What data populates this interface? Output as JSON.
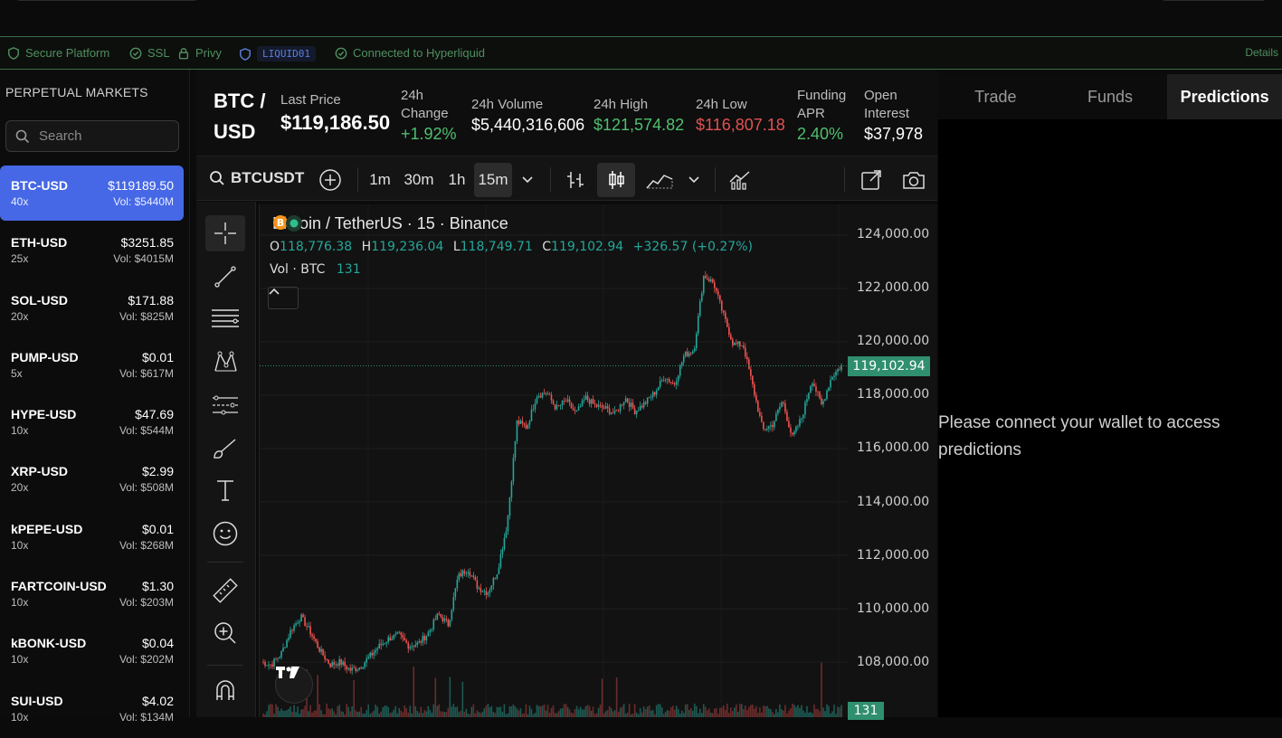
{
  "security_bar": {
    "items": [
      {
        "icon": "shield-icon",
        "label": "Secure Platform"
      },
      {
        "icon": "check-badge-icon",
        "label": "SSL"
      },
      {
        "icon": "lock-icon",
        "label": "Privy"
      }
    ],
    "tag": "LIQUID01",
    "status": "Connected to Hyperliquid",
    "details": "Details",
    "color": "#4f8f5f"
  },
  "sidebar": {
    "title": "PERPETUAL MARKETS",
    "search_placeholder": "Search",
    "markets": [
      {
        "symbol": "BTC-USD",
        "price": "$119189.50",
        "leverage": "40x",
        "volume": "Vol: $5440M"
      },
      {
        "symbol": "ETH-USD",
        "price": "$3251.85",
        "leverage": "25x",
        "volume": "Vol: $4015M"
      },
      {
        "symbol": "SOL-USD",
        "price": "$171.88",
        "leverage": "20x",
        "volume": "Vol: $825M"
      },
      {
        "symbol": "PUMP-USD",
        "price": "$0.01",
        "leverage": "5x",
        "volume": "Vol: $617M"
      },
      {
        "symbol": "HYPE-USD",
        "price": "$47.69",
        "leverage": "10x",
        "volume": "Vol: $544M"
      },
      {
        "symbol": "XRP-USD",
        "price": "$2.99",
        "leverage": "20x",
        "volume": "Vol: $508M"
      },
      {
        "symbol": "kPEPE-USD",
        "price": "$0.01",
        "leverage": "10x",
        "volume": "Vol: $268M"
      },
      {
        "symbol": "FARTCOIN-USD",
        "price": "$1.30",
        "leverage": "10x",
        "volume": "Vol: $203M"
      },
      {
        "symbol": "kBONK-USD",
        "price": "$0.04",
        "leverage": "10x",
        "volume": "Vol: $202M"
      },
      {
        "symbol": "SUI-USD",
        "price": "$4.02",
        "leverage": "10x",
        "volume": "Vol: $134M"
      }
    ],
    "active_color": "#4668e6"
  },
  "market_header": {
    "pair_line1": "BTC /",
    "pair_line2": "USD",
    "last_price_label": "Last Price",
    "last_price": "$119,186.50",
    "change_label_1": "24h",
    "change_label_2": "Change",
    "change": "+1.92%",
    "volume_label": "24h Volume",
    "volume": "$5,440,316,606",
    "high_label": "24h High",
    "high": "$121,574.82",
    "low_label": "24h Low",
    "low": "$116,807.18",
    "funding_label_1": "Funding",
    "funding_label_2": "APR",
    "funding": "2.40%",
    "oi_label_1": "Open",
    "oi_label_2": "Interest",
    "oi": "$37,978"
  },
  "chart_toolbar": {
    "symbol": "BTCUSDT",
    "intervals": [
      "1m",
      "30m",
      "1h",
      "15m"
    ],
    "selected_interval": "15m"
  },
  "chart_legend": {
    "title": "Bitcoin / TetherUS · 15 · Binance",
    "o_label": "O",
    "o": "118,776.38",
    "h_label": "H",
    "h": "119,236.04",
    "l_label": "L",
    "l": "118,749.71",
    "c_label": "C",
    "c": "119,102.94",
    "change": "+326.57 (+0.27%)",
    "vol_label": "Vol · BTC",
    "vol_value": "131",
    "current_price_tag": "119,102.94",
    "volume_tag": "131"
  },
  "chart_data": {
    "type": "candlestick",
    "symbol": "BTCUSDT",
    "interval": "15",
    "exchange": "Binance",
    "y_ticks": [
      "124,000.00",
      "122,000.00",
      "120,000.00",
      "118,000.00",
      "116,000.00",
      "114,000.00",
      "112,000.00",
      "110,000.00",
      "108,000.00"
    ],
    "ylim": [
      106000,
      125000
    ],
    "current_price": 119102.94,
    "approx_closes": [
      108000,
      107900,
      108300,
      109200,
      109700,
      109100,
      108400,
      107900,
      108000,
      107700,
      107800,
      108200,
      108600,
      108900,
      109000,
      108600,
      108700,
      109100,
      109800,
      109400,
      111200,
      111500,
      110800,
      110600,
      111400,
      113200,
      117000,
      116800,
      118000,
      118100,
      117500,
      117800,
      117300,
      117900,
      117600,
      117500,
      117300,
      117900,
      117400,
      117700,
      118100,
      118700,
      118400,
      119500,
      119700,
      122500,
      122200,
      121000,
      119900,
      119900,
      118300,
      116700,
      116900,
      117800,
      116400,
      117200,
      118600,
      117600,
      118700,
      119100
    ],
    "up_color": "#26a69a",
    "down_color": "#ef5350"
  },
  "right_panel": {
    "tabs": [
      "Trade",
      "Funds",
      "Predictions"
    ],
    "active_tab": "Predictions",
    "message": "Please connect your wallet to access predictions"
  }
}
